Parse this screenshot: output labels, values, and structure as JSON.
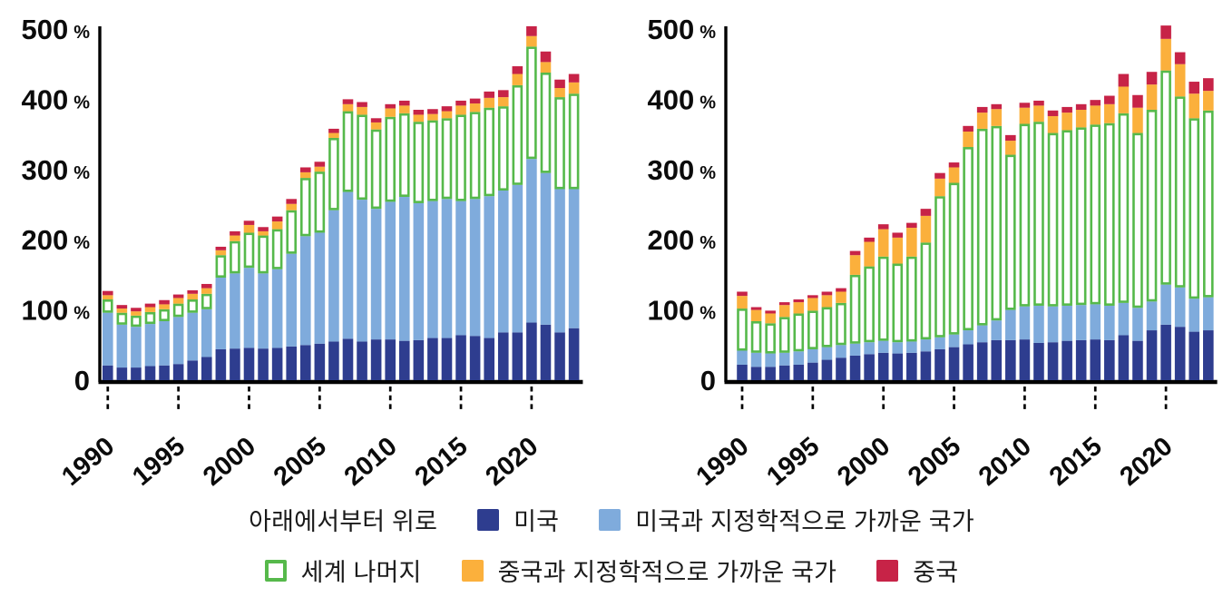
{
  "figure": {
    "y_axis_ticks": [
      {
        "value": 500,
        "label": "500",
        "suffix": "%"
      },
      {
        "value": 400,
        "label": "400",
        "suffix": "%"
      },
      {
        "value": 300,
        "label": "300",
        "suffix": "%"
      },
      {
        "value": 200,
        "label": "200",
        "suffix": "%"
      },
      {
        "value": 100,
        "label": "100",
        "suffix": "%"
      },
      {
        "value": 0,
        "label": "0",
        "suffix": ""
      }
    ],
    "x_tick_years": [
      "1990",
      "1995",
      "2000",
      "2005",
      "2010",
      "2015",
      "2020"
    ],
    "axis_color": "#000000"
  },
  "legend": {
    "title": "아래에서부터 위로",
    "items": [
      {
        "id": "usa",
        "label": "미국",
        "color": "#2e3d8f",
        "style": "solid"
      },
      {
        "id": "usa-close",
        "label": "미국과 지정학적으로 가까운 국가",
        "color": "#7fabdc",
        "style": "solid"
      },
      {
        "id": "rest-of-world",
        "label": "세계 나머지",
        "color": "#56b94b",
        "style": "outline"
      },
      {
        "id": "china-close",
        "label": "중국과 지정학적으로 가까운 국가",
        "color": "#fbb03c",
        "style": "solid"
      },
      {
        "id": "china",
        "label": "중국",
        "color": "#c72347",
        "style": "solid"
      }
    ]
  },
  "chart_data": [
    {
      "type": "bar",
      "stacked": true,
      "position": "left",
      "title": "",
      "xlabel": "",
      "ylabel": "%",
      "ylim": [
        0,
        500
      ],
      "grid": false,
      "categories": [
        1990,
        1991,
        1992,
        1993,
        1994,
        1995,
        1996,
        1997,
        1998,
        1999,
        2000,
        2001,
        2002,
        2003,
        2004,
        2005,
        2006,
        2007,
        2008,
        2009,
        2010,
        2011,
        2012,
        2013,
        2014,
        2015,
        2016,
        2017,
        2018,
        2019,
        2020,
        2021,
        2022,
        2023
      ],
      "series": [
        {
          "name": "미국",
          "color": "#2e3d8f",
          "values": [
            21,
            18,
            18,
            20,
            21,
            23,
            28,
            33,
            44,
            45,
            46,
            45,
            46,
            48,
            50,
            52,
            55,
            59,
            55,
            58,
            58,
            56,
            57,
            60,
            60,
            64,
            63,
            60,
            68,
            68,
            82,
            79,
            68,
            74
          ]
        },
        {
          "name": "미국과 지정학적으로 가까운 국가",
          "color": "#7fabdc",
          "values": [
            75,
            61,
            58,
            60,
            63,
            67,
            68,
            68,
            102,
            107,
            114,
            107,
            112,
            132,
            155,
            158,
            187,
            209,
            202,
            186,
            196,
            205,
            195,
            195,
            198,
            191,
            195,
            202,
            202,
            210,
            233,
            216,
            204,
            198
          ]
        },
        {
          "name": "세계 나머지",
          "color": "#56b94b",
          "values": [
            19,
            17,
            16,
            17,
            17,
            19,
            19,
            22,
            32,
            46,
            50,
            54,
            57,
            62,
            83,
            87,
            103,
            115,
            121,
            113,
            121,
            119,
            116,
            115,
            115,
            123,
            124,
            126,
            120,
            142,
            160,
            143,
            131,
            136
          ]
        },
        {
          "name": "중국과 지정학적으로 가까운 국가",
          "color": "#fbb03c",
          "values": [
            6,
            6,
            6,
            7,
            7,
            8,
            8,
            8,
            7,
            8,
            11,
            6,
            11,
            9,
            8,
            7,
            7,
            10,
            11,
            10,
            12,
            11,
            10,
            9,
            10,
            13,
            12,
            14,
            13,
            16,
            15,
            15,
            13,
            16
          ]
        },
        {
          "name": "중국",
          "color": "#c72347",
          "values": [
            6,
            5,
            5,
            5,
            6,
            5,
            5,
            6,
            5,
            6,
            6,
            6,
            7,
            7,
            7,
            7,
            6,
            7,
            7,
            6,
            6,
            7,
            7,
            7,
            7,
            7,
            7,
            9,
            10,
            11,
            14,
            15,
            12,
            12
          ]
        }
      ]
    },
    {
      "type": "bar",
      "stacked": true,
      "position": "right",
      "title": "",
      "xlabel": "",
      "ylabel": "%",
      "ylim": [
        0,
        500
      ],
      "grid": false,
      "categories": [
        1990,
        1991,
        1992,
        1993,
        1994,
        1995,
        1996,
        1997,
        1998,
        1999,
        2000,
        2001,
        2002,
        2003,
        2004,
        2005,
        2006,
        2007,
        2008,
        2009,
        2010,
        2011,
        2012,
        2013,
        2014,
        2015,
        2016,
        2017,
        2018,
        2019,
        2020,
        2021,
        2022,
        2023
      ],
      "series": [
        {
          "name": "미국",
          "color": "#2e3d8f",
          "values": [
            22,
            19,
            19,
            21,
            22,
            25,
            29,
            32,
            35,
            37,
            39,
            38,
            39,
            41,
            44,
            47,
            51,
            54,
            57,
            57,
            58,
            53,
            54,
            56,
            57,
            58,
            57,
            64,
            56,
            71,
            79,
            76,
            69,
            71
          ]
        },
        {
          "name": "미국과 지정학적으로 가까운 국가",
          "color": "#7fabdc",
          "values": [
            20,
            20,
            19,
            18,
            19,
            19,
            18,
            18,
            17,
            17,
            17,
            16,
            16,
            17,
            17,
            18,
            20,
            24,
            28,
            43,
            47,
            53,
            51,
            50,
            50,
            50,
            49,
            46,
            47,
            41,
            57,
            56,
            47,
            47
          ]
        },
        {
          "name": "세계 나머지",
          "color": "#56b94b",
          "values": [
            60,
            45,
            43,
            51,
            54,
            55,
            57,
            60,
            98,
            108,
            120,
            112,
            121,
            138,
            201,
            216,
            261,
            280,
            277,
            221,
            260,
            262,
            247,
            250,
            253,
            256,
            260,
            270,
            249,
            273,
            305,
            272,
            257,
            266
          ]
        },
        {
          "name": "중국과 지정학적으로 가까운 국가",
          "color": "#fbb03c",
          "values": [
            18,
            16,
            14,
            17,
            16,
            18,
            17,
            16,
            28,
            35,
            39,
            37,
            41,
            38,
            25,
            22,
            22,
            23,
            24,
            20,
            23,
            23,
            24,
            25,
            25,
            27,
            27,
            38,
            36,
            36,
            45,
            46,
            35,
            28
          ]
        },
        {
          "name": "중국",
          "color": "#c72347",
          "values": [
            6,
            4,
            4,
            4,
            4,
            4,
            5,
            5,
            6,
            6,
            7,
            7,
            7,
            10,
            8,
            7,
            8,
            8,
            7,
            8,
            7,
            7,
            8,
            8,
            8,
            8,
            12,
            18,
            18,
            18,
            19,
            17,
            17,
            18
          ]
        }
      ]
    }
  ]
}
